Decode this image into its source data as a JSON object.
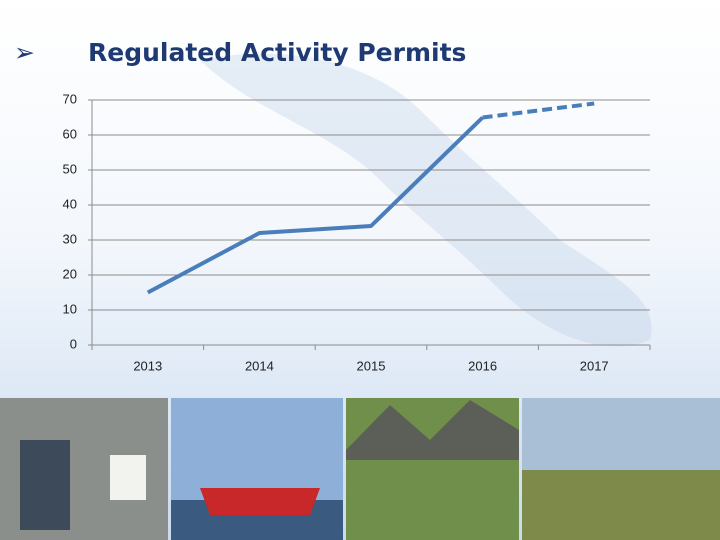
{
  "chart_data": {
    "type": "line",
    "bullet": "➢",
    "title": "Regulated Activity Permits",
    "categories": [
      "2013",
      "2014",
      "2015",
      "2016",
      "2017"
    ],
    "values": [
      15,
      32,
      34,
      65,
      69
    ],
    "dashed_from": 3,
    "color": "#4a7ebb",
    "ylim": [
      0,
      70
    ],
    "yticks": [
      0,
      10,
      20,
      30,
      40,
      50,
      60,
      70
    ],
    "grid": true
  }
}
